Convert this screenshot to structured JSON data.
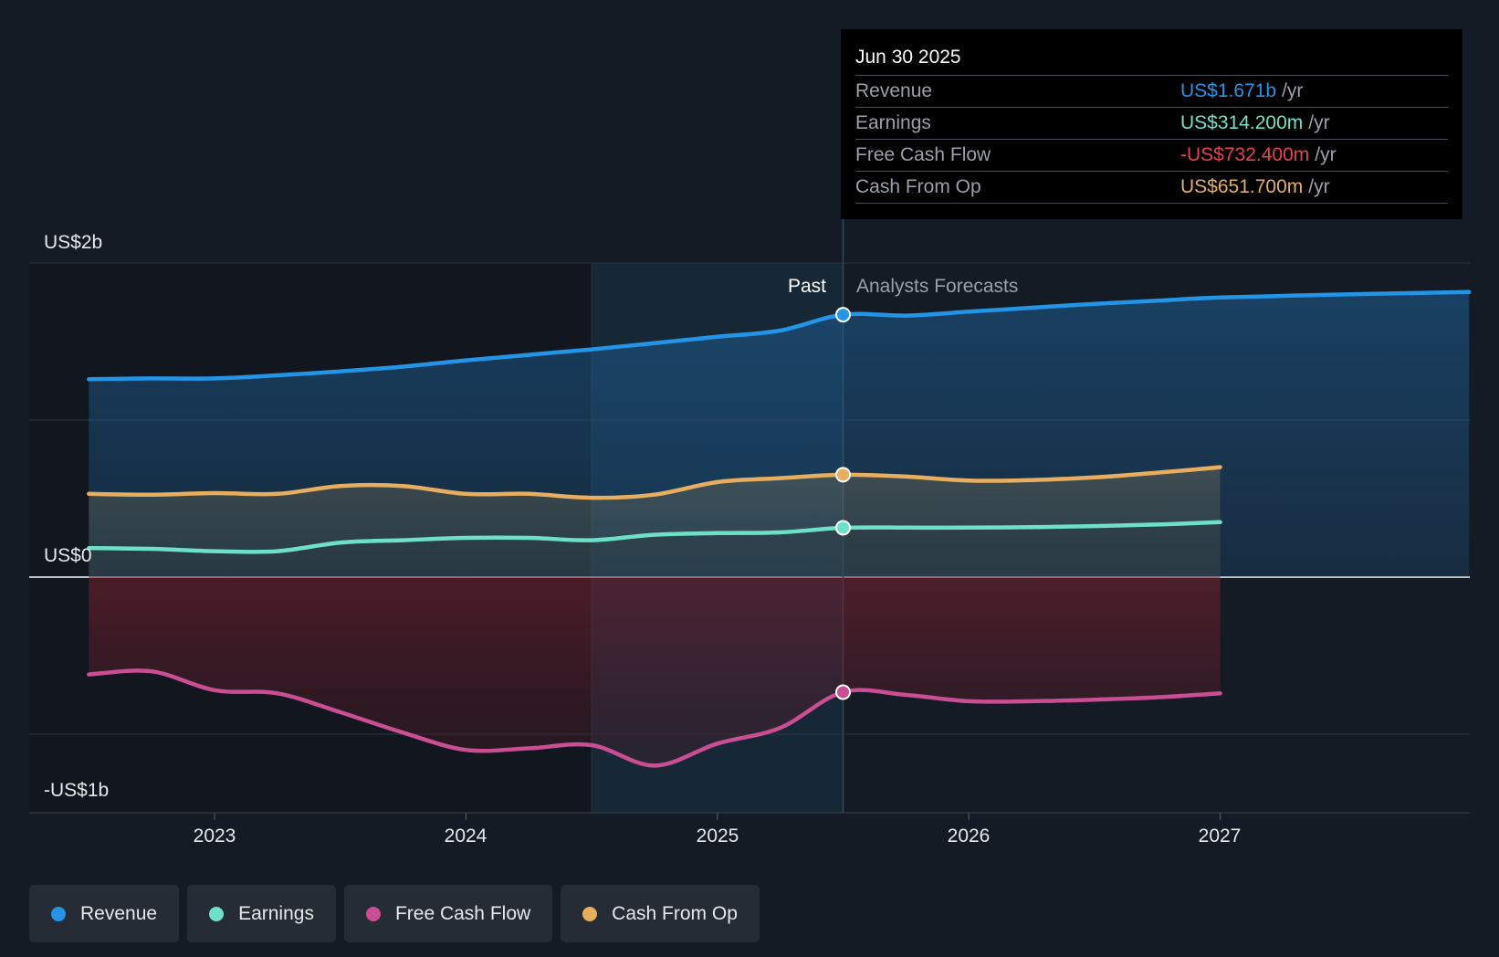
{
  "chart_data": {
    "type": "line",
    "title": "",
    "x_unit": "year",
    "ylim": [
      -1.5,
      2.0
    ],
    "y_unit": "US$ billions",
    "y_tick_labels": [
      {
        "value": 2.0,
        "label": "US$2b"
      },
      {
        "value": 0.0,
        "label": "US$0"
      },
      {
        "value": -1.0,
        "label": "-US$1b"
      }
    ],
    "x_ticks": [
      {
        "value": 2023,
        "label": "2023"
      },
      {
        "value": 2024,
        "label": "2024"
      },
      {
        "value": 2025,
        "label": "2025"
      },
      {
        "value": 2026,
        "label": "2026"
      },
      {
        "value": 2027,
        "label": "2027"
      }
    ],
    "xlim": [
      2022.27,
      2027.99
    ],
    "past_label": "Past",
    "forecast_label": "Analysts Forecasts",
    "divider_x": 2025.5,
    "highlight_start_x": 2024.5,
    "series": [
      {
        "name": "Revenue",
        "color": "#2394e6",
        "points": [
          [
            2022.5,
            1.26
          ],
          [
            2022.75,
            1.265
          ],
          [
            2023.0,
            1.265
          ],
          [
            2023.25,
            1.285
          ],
          [
            2023.5,
            1.31
          ],
          [
            2023.75,
            1.34
          ],
          [
            2024.0,
            1.38
          ],
          [
            2024.25,
            1.415
          ],
          [
            2024.5,
            1.45
          ],
          [
            2024.75,
            1.49
          ],
          [
            2025.0,
            1.53
          ],
          [
            2025.25,
            1.57
          ],
          [
            2025.5,
            1.671
          ],
          [
            2025.75,
            1.665
          ],
          [
            2026.0,
            1.69
          ],
          [
            2026.25,
            1.715
          ],
          [
            2026.5,
            1.74
          ],
          [
            2026.75,
            1.76
          ],
          [
            2027.0,
            1.78
          ],
          [
            2027.5,
            1.8
          ],
          [
            2027.99,
            1.815
          ]
        ]
      },
      {
        "name": "Earnings",
        "color": "#6ee0c7",
        "points": [
          [
            2022.5,
            0.185
          ],
          [
            2022.75,
            0.18
          ],
          [
            2023.0,
            0.165
          ],
          [
            2023.25,
            0.165
          ],
          [
            2023.5,
            0.22
          ],
          [
            2023.75,
            0.235
          ],
          [
            2024.0,
            0.25
          ],
          [
            2024.25,
            0.25
          ],
          [
            2024.5,
            0.235
          ],
          [
            2024.75,
            0.27
          ],
          [
            2025.0,
            0.28
          ],
          [
            2025.25,
            0.285
          ],
          [
            2025.5,
            0.3142
          ],
          [
            2025.75,
            0.315
          ],
          [
            2026.0,
            0.315
          ],
          [
            2026.25,
            0.318
          ],
          [
            2026.5,
            0.325
          ],
          [
            2026.75,
            0.335
          ],
          [
            2027.0,
            0.35
          ]
        ]
      },
      {
        "name": "Free Cash Flow",
        "color": "#c94e93",
        "points": [
          [
            2022.5,
            -0.62
          ],
          [
            2022.75,
            -0.6
          ],
          [
            2023.0,
            -0.72
          ],
          [
            2023.25,
            -0.74
          ],
          [
            2023.5,
            -0.86
          ],
          [
            2023.75,
            -0.99
          ],
          [
            2024.0,
            -1.1
          ],
          [
            2024.25,
            -1.09
          ],
          [
            2024.5,
            -1.07
          ],
          [
            2024.75,
            -1.2
          ],
          [
            2025.0,
            -1.06
          ],
          [
            2025.25,
            -0.96
          ],
          [
            2025.5,
            -0.7324
          ],
          [
            2025.75,
            -0.75
          ],
          [
            2026.0,
            -0.79
          ],
          [
            2026.25,
            -0.79
          ],
          [
            2026.5,
            -0.78
          ],
          [
            2026.75,
            -0.765
          ],
          [
            2027.0,
            -0.74
          ]
        ]
      },
      {
        "name": "Cash From Op",
        "color": "#e8ae60",
        "points": [
          [
            2022.5,
            0.53
          ],
          [
            2022.75,
            0.525
          ],
          [
            2023.0,
            0.535
          ],
          [
            2023.25,
            0.53
          ],
          [
            2023.5,
            0.58
          ],
          [
            2023.75,
            0.58
          ],
          [
            2024.0,
            0.53
          ],
          [
            2024.25,
            0.53
          ],
          [
            2024.5,
            0.505
          ],
          [
            2024.75,
            0.525
          ],
          [
            2025.0,
            0.605
          ],
          [
            2025.25,
            0.63
          ],
          [
            2025.5,
            0.6517
          ],
          [
            2025.75,
            0.64
          ],
          [
            2026.0,
            0.615
          ],
          [
            2026.25,
            0.618
          ],
          [
            2026.5,
            0.635
          ],
          [
            2026.75,
            0.665
          ],
          [
            2027.0,
            0.7
          ]
        ]
      }
    ]
  },
  "tooltip": {
    "date": "Jun 30 2025",
    "rows": [
      {
        "label": "Revenue",
        "value": "US$1.671b",
        "unit": "/yr",
        "color": "#2394e6"
      },
      {
        "label": "Earnings",
        "value": "US$314.200m",
        "unit": "/yr",
        "color": "#6ee0c7"
      },
      {
        "label": "Free Cash Flow",
        "value": "-US$732.400m",
        "unit": "/yr",
        "color": "#e8424f"
      },
      {
        "label": "Cash From Op",
        "value": "US$651.700m",
        "unit": "/yr",
        "color": "#e8ae60"
      }
    ]
  },
  "legend": [
    {
      "label": "Revenue",
      "color": "#2394e6"
    },
    {
      "label": "Earnings",
      "color": "#6ee0c7"
    },
    {
      "label": "Free Cash Flow",
      "color": "#c94e93"
    },
    {
      "label": "Cash From Op",
      "color": "#e8ae60"
    }
  ]
}
